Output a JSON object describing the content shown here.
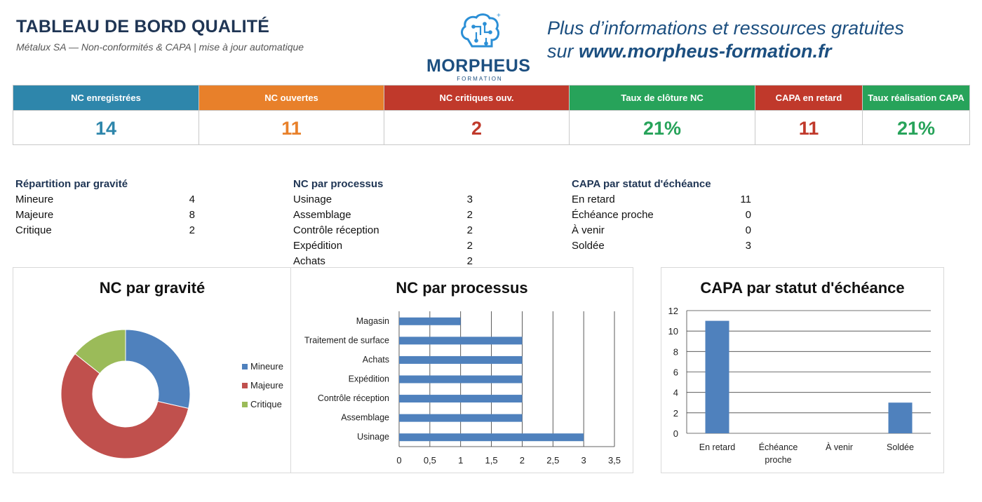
{
  "header": {
    "title": "TABLEAU DE BORD QUALITÉ",
    "subtitle": "Métalux SA — Non-conformités & CAPA  |  mise à jour automatique",
    "logo_name": "MORPHEUS",
    "logo_sub": "FORMATION",
    "promo_line1": "Plus d’informations et ressources gratuites",
    "promo_line2_prefix": "sur ",
    "promo_url": "www.morpheus-formation.fr"
  },
  "kpis": [
    {
      "label": "NC enregistrées",
      "value": "14",
      "color": "#2e86ab"
    },
    {
      "label": "NC ouvertes",
      "value": "11",
      "color": "#e8802a"
    },
    {
      "label": "NC critiques ouv.",
      "value": "2",
      "color": "#c0392b"
    },
    {
      "label": "Taux de clôture NC",
      "value": "21%",
      "color": "#27a35a"
    },
    {
      "label": "CAPA en retard",
      "value": "11",
      "color": "#c0392b"
    },
    {
      "label": "Taux réalisation CAPA",
      "value": "21%",
      "color": "#27a35a"
    }
  ],
  "summaries": [
    {
      "title": "Répartition par gravité",
      "rows": [
        {
          "label": "Mineure",
          "value": "4"
        },
        {
          "label": "Majeure",
          "value": "8"
        },
        {
          "label": "Critique",
          "value": "2"
        }
      ]
    },
    {
      "title": "NC par processus",
      "rows": [
        {
          "label": "Usinage",
          "value": "3"
        },
        {
          "label": "Assemblage",
          "value": "2"
        },
        {
          "label": "Contrôle réception",
          "value": "2"
        },
        {
          "label": "Expédition",
          "value": "2"
        },
        {
          "label": "Achats",
          "value": "2"
        }
      ]
    },
    {
      "title": "CAPA par statut d'échéance",
      "rows": [
        {
          "label": "En retard",
          "value": "11"
        },
        {
          "label": "Échéance proche",
          "value": "0"
        },
        {
          "label": "À venir",
          "value": "0"
        },
        {
          "label": "Soldée",
          "value": "3"
        }
      ]
    }
  ],
  "chart_data": [
    {
      "type": "pie",
      "title": "NC par gravité",
      "categories": [
        "Mineure",
        "Majeure",
        "Critique"
      ],
      "values": [
        4,
        8,
        2
      ],
      "colors": [
        "#4f81bd",
        "#c0504d",
        "#9bbb59"
      ],
      "donut": true,
      "legend": "right"
    },
    {
      "type": "bar",
      "orientation": "horizontal",
      "title": "NC par processus",
      "categories": [
        "Usinage",
        "Assemblage",
        "Contrôle réception",
        "Expédition",
        "Achats",
        "Traitement de surface",
        "Magasin"
      ],
      "values": [
        3,
        2,
        2,
        2,
        2,
        2,
        1
      ],
      "xlim": [
        0,
        3.5
      ],
      "ticks": [
        "0",
        "0,5",
        "1",
        "1,5",
        "2",
        "2,5",
        "3",
        "3,5"
      ],
      "grid": true,
      "color": "#4f81bd"
    },
    {
      "type": "bar",
      "title": "CAPA par statut d'échéance",
      "categories": [
        "En retard",
        "Échéance proche",
        "À venir",
        "Soldée"
      ],
      "values": [
        11,
        0,
        0,
        3
      ],
      "ylim": [
        0,
        12
      ],
      "ticks": [
        "0",
        "2",
        "4",
        "6",
        "8",
        "10",
        "12"
      ],
      "grid": true,
      "color": "#4f81bd"
    }
  ]
}
